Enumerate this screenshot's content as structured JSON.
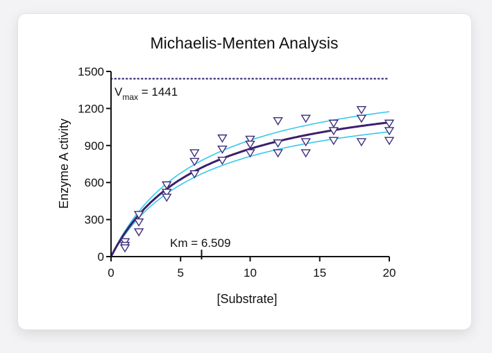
{
  "chart_data": {
    "type": "scatter",
    "title": "Michaelis-Menten Analysis",
    "xlabel": "[Substrate]",
    "ylabel": "Enzyme A ctivity",
    "xlim": [
      0,
      20
    ],
    "ylim": [
      0,
      1500
    ],
    "xticks": [
      "0",
      "5",
      "10",
      "15",
      "20"
    ],
    "yticks": [
      "0",
      "300",
      "600",
      "900",
      "1200",
      "1500"
    ],
    "grid": false,
    "model": {
      "vmax": 1441,
      "km": 6.509,
      "ci_lower_factor": 0.93,
      "ci_upper_factor": 1.08
    },
    "annotations": {
      "vmax_prefix": "V",
      "vmax_subscript": "max",
      "vmax_value": " = 1441",
      "km_text": "Km = 6.509"
    },
    "series": [
      {
        "marker": "triangle-down",
        "x": [
          1,
          1,
          1,
          2,
          2,
          2,
          4,
          4,
          4,
          6,
          6,
          6,
          8,
          8,
          8,
          10,
          10,
          10,
          12,
          12,
          12,
          14,
          14,
          14,
          16,
          16,
          16,
          18,
          18,
          18,
          20,
          20,
          20
        ],
        "y": [
          120,
          90,
          70,
          340,
          280,
          200,
          580,
          520,
          480,
          840,
          770,
          670,
          960,
          870,
          780,
          950,
          910,
          840,
          1100,
          920,
          840,
          1120,
          930,
          840,
          1080,
          1020,
          940,
          1190,
          1120,
          930,
          1080,
          1020,
          940
        ]
      }
    ],
    "colors": {
      "fit": "#3b1f6b",
      "ci": "#37c7ee",
      "marker_stroke": "#3b2d7a",
      "marker_fill": "#ffffff",
      "vmax_line": "#3b2d7a",
      "axis": "#111111"
    }
  }
}
